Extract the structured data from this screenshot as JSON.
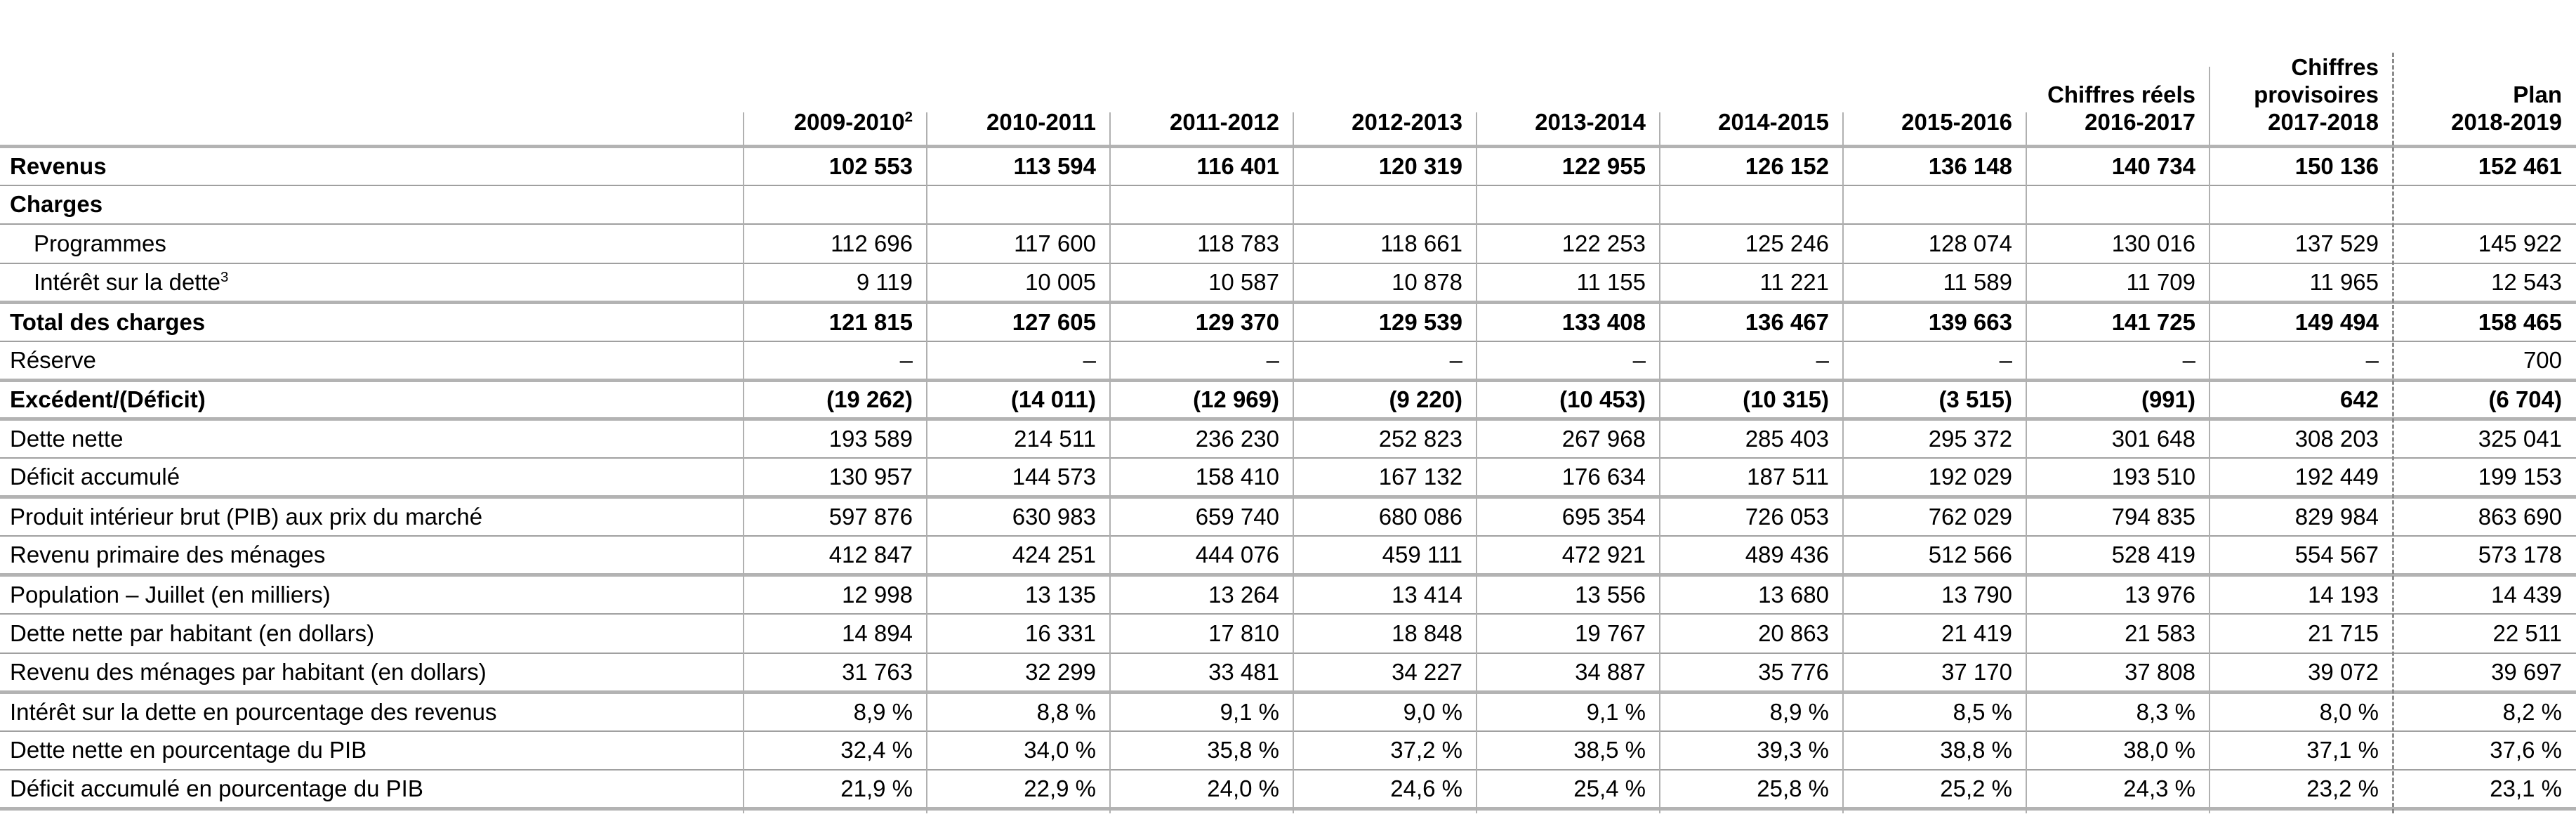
{
  "header": {
    "columns": [
      {
        "lines": [
          "2009-2010"
        ],
        "sup": "2"
      },
      {
        "lines": [
          "2010-2011"
        ]
      },
      {
        "lines": [
          "2011-2012"
        ]
      },
      {
        "lines": [
          "2012-2013"
        ]
      },
      {
        "lines": [
          "2013-2014"
        ]
      },
      {
        "lines": [
          "2014-2015"
        ]
      },
      {
        "lines": [
          "2015-2016"
        ]
      },
      {
        "lines": [
          "Chiffres réels",
          "2016-2017"
        ]
      },
      {
        "lines": [
          "Chiffres",
          "provisoires",
          "2017-2018"
        ]
      },
      {
        "lines": [
          "Plan",
          "2018-2019"
        ]
      }
    ]
  },
  "rows": [
    {
      "label": "Revenus",
      "bold": true,
      "border": "thin",
      "values": [
        "102 553",
        "113 594",
        "116 401",
        "120 319",
        "122 955",
        "126 152",
        "136 148",
        "140 734",
        "150 136",
        "152 461"
      ]
    },
    {
      "label": "Charges",
      "bold": true,
      "border": "thin",
      "values": [
        "",
        "",
        "",
        "",
        "",
        "",
        "",
        "",
        "",
        ""
      ]
    },
    {
      "label": "Programmes",
      "indent": true,
      "border": "thin",
      "values": [
        "112 696",
        "117 600",
        "118 783",
        "118 661",
        "122 253",
        "125 246",
        "128 074",
        "130 016",
        "137 529",
        "145 922"
      ]
    },
    {
      "label": "Intérêt sur la dette",
      "sup": "3",
      "indent": true,
      "border": "thick",
      "values": [
        "9 119",
        "10 005",
        "10 587",
        "10 878",
        "11 155",
        "11 221",
        "11 589",
        "11 709",
        "11 965",
        "12 543"
      ]
    },
    {
      "label": "Total des charges",
      "bold": true,
      "border": "thin",
      "values": [
        "121 815",
        "127 605",
        "129 370",
        "129 539",
        "133 408",
        "136 467",
        "139 663",
        "141 725",
        "149 494",
        "158 465"
      ]
    },
    {
      "label": "Réserve",
      "border": "thick",
      "values": [
        "–",
        "–",
        "–",
        "–",
        "–",
        "–",
        "–",
        "–",
        "–",
        "700"
      ]
    },
    {
      "label": "Excédent/(Déficit)",
      "bold": true,
      "border": "thick",
      "values": [
        "(19 262)",
        "(14 011)",
        "(12 969)",
        "(9 220)",
        "(10 453)",
        "(10 315)",
        "(3 515)",
        "(991)",
        "642",
        "(6 704)"
      ]
    },
    {
      "label": "Dette nette",
      "border": "thin",
      "values": [
        "193 589",
        "214 511",
        "236 230",
        "252 823",
        "267 968",
        "285 403",
        "295 372",
        "301 648",
        "308 203",
        "325 041"
      ]
    },
    {
      "label": "Déficit accumulé",
      "border": "thick",
      "values": [
        "130 957",
        "144 573",
        "158 410",
        "167 132",
        "176 634",
        "187 511",
        "192 029",
        "193 510",
        "192 449",
        "199 153"
      ]
    },
    {
      "label": "Produit intérieur brut (PIB) aux prix du marché",
      "border": "thin",
      "values": [
        "597 876",
        "630 983",
        "659 740",
        "680 086",
        "695 354",
        "726 053",
        "762 029",
        "794 835",
        "829 984",
        "863 690"
      ]
    },
    {
      "label": "Revenu primaire des ménages",
      "border": "thick",
      "values": [
        "412 847",
        "424 251",
        "444 076",
        "459 111",
        "472 921",
        "489 436",
        "512 566",
        "528 419",
        "554 567",
        "573 178"
      ]
    },
    {
      "label": "Population – Juillet (en milliers)",
      "border": "thin",
      "values": [
        "12 998",
        "13 135",
        "13 264",
        "13 414",
        "13 556",
        "13 680",
        "13 790",
        "13 976",
        "14 193",
        "14 439"
      ]
    },
    {
      "label": "Dette nette par habitant (en dollars)",
      "border": "thin",
      "values": [
        "14 894",
        "16 331",
        "17 810",
        "18 848",
        "19 767",
        "20 863",
        "21 419",
        "21 583",
        "21 715",
        "22 511"
      ]
    },
    {
      "label": "Revenu des ménages par habitant (en dollars)",
      "border": "thick",
      "values": [
        "31 763",
        "32 299",
        "33 481",
        "34 227",
        "34 887",
        "35 776",
        "37 170",
        "37 808",
        "39 072",
        "39 697"
      ]
    },
    {
      "label": "Intérêt sur la dette en pourcentage des revenus",
      "border": "thin",
      "values": [
        "8,9 %",
        "8,8 %",
        "9,1 %",
        "9,0 %",
        "9,1 %",
        "8,9 %",
        "8,5 %",
        "8,3 %",
        "8,0 %",
        "8,2 %"
      ]
    },
    {
      "label": "Dette nette en pourcentage du PIB",
      "border": "thin",
      "values": [
        "32,4 %",
        "34,0 %",
        "35,8 %",
        "37,2 %",
        "38,5 %",
        "39,3 %",
        "38,8 %",
        "38,0 %",
        "37,1 %",
        "37,6 %"
      ]
    },
    {
      "label": "Déficit accumulé en pourcentage du PIB",
      "border": "thick",
      "values": [
        "21,9 %",
        "22,9 %",
        "24,0 %",
        "24,6 %",
        "25,4 %",
        "25,8 %",
        "25,2 %",
        "24,3 %",
        "23,2 %",
        "23,1 %"
      ]
    }
  ]
}
